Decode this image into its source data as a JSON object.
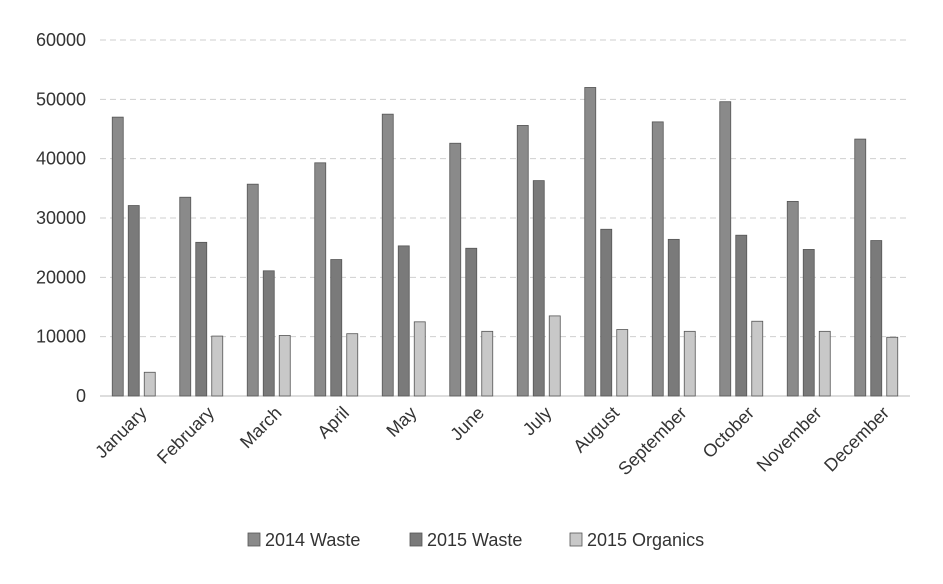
{
  "chart_data": {
    "type": "bar",
    "categories": [
      "January",
      "February",
      "March",
      "April",
      "May",
      "June",
      "July",
      "August",
      "September",
      "October",
      "November",
      "December"
    ],
    "series": [
      {
        "name": "2014 Waste",
        "color": "#8a8a8a",
        "values": [
          47000,
          33500,
          35700,
          39300,
          47500,
          42600,
          45600,
          52000,
          46200,
          49600,
          32800,
          43300
        ]
      },
      {
        "name": "2015 Waste",
        "color": "#7a7a7a",
        "values": [
          32100,
          25900,
          21100,
          23000,
          25300,
          24900,
          36300,
          28100,
          26400,
          27100,
          24700,
          26200
        ]
      },
      {
        "name": "2015 Organics",
        "color": "#c8c8c8",
        "values": [
          4000,
          10100,
          10200,
          10500,
          12500,
          10900,
          13500,
          11200,
          10900,
          12600,
          10900,
          9900
        ]
      }
    ],
    "yticks": [
      "0",
      "10000",
      "20000",
      "30000",
      "40000",
      "50000",
      "60000"
    ],
    "ylim": [
      0,
      60000
    ],
    "grid": true,
    "legend": "bottom",
    "title": "",
    "xlabel": "",
    "ylabel": ""
  }
}
